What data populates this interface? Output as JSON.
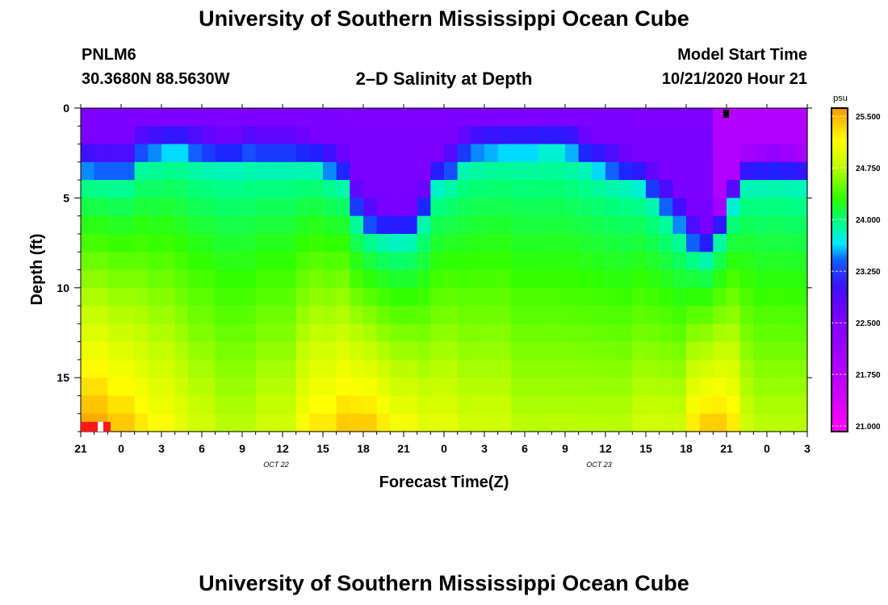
{
  "header": {
    "title": "University of Southern Mississippi Ocean Cube",
    "station_name": "PNLM6",
    "station_coords": "30.3680N 88.5630W",
    "plot_title": "2–D Salinity at Depth",
    "start_label": "Model Start Time",
    "start_value": "10/21/2020 Hour 21"
  },
  "footer": {
    "title": "University of Southern Mississippi Ocean Cube"
  },
  "colors": {
    "scale": [
      "#ff00ff",
      "#d000ff",
      "#9600ff",
      "#2020ff",
      "#00f0ff",
      "#00ff80",
      "#30ff00",
      "#c0ff00",
      "#ffff00",
      "#ff9800"
    ]
  },
  "chart_data": {
    "type": "heatmap",
    "title": "2–D Salinity at Depth",
    "xlabel": "Forecast Time(Z)",
    "ylabel": "Depth (ft)",
    "x_tick_labels": [
      "21",
      "0",
      "3",
      "6",
      "9",
      "12",
      "15",
      "18",
      "21",
      "0",
      "3",
      "6",
      "9",
      "12",
      "15",
      "18",
      "21",
      "0",
      "3"
    ],
    "x_range_hours": [
      0,
      54
    ],
    "date_labels": [
      {
        "text": "OCT 22",
        "hour": 15
      },
      {
        "text": "OCT 23",
        "hour": 39
      }
    ],
    "y_tick_labels": [
      "0",
      "5",
      "10",
      "15"
    ],
    "y_tick_values": [
      0,
      5,
      10,
      15
    ],
    "ylim": [
      0,
      18
    ],
    "n_columns": 54,
    "n_depth_levels": 18,
    "colorbar": {
      "unit": "psu",
      "tick_labels": [
        "25.500",
        "24.750",
        "24.000",
        "23.250",
        "22.500",
        "21.750",
        "21.000"
      ],
      "tick_values": [
        25.5,
        24.75,
        24.0,
        23.25,
        22.5,
        21.75,
        21.0
      ],
      "range": [
        20.92,
        25.62
      ]
    },
    "salinity_psu": {
      "surface_ranges_by_hour": [
        {
          "hours": [
            0,
            5
          ],
          "surface": 22.6
        },
        {
          "hours": [
            5,
            16
          ],
          "surface": 22.6
        },
        {
          "hours": [
            16,
            22
          ],
          "surface": 22.6
        },
        {
          "hours": [
            22,
            35
          ],
          "surface": 22.6
        },
        {
          "hours": [
            35,
            47
          ],
          "surface": 22.6
        },
        {
          "hours": [
            47,
            54
          ],
          "surface": 21.9
        }
      ],
      "halocline_depth_ft": [
        3.2,
        3.3,
        3.3,
        3.3,
        2.4,
        2.2,
        2.0,
        2.0,
        2.3,
        2.5,
        2.6,
        2.6,
        2.4,
        2.5,
        2.5,
        2.5,
        2.6,
        2.7,
        3.2,
        3.6,
        5.5,
        6.4,
        6.7,
        6.8,
        6.7,
        5.6,
        3.8,
        3.4,
        2.5,
        2.2,
        2.1,
        2.0,
        2.0,
        2.0,
        1.9,
        1.9,
        2.1,
        2.6,
        3.0,
        3.3,
        3.6,
        3.9,
        4.5,
        5.3,
        6.2,
        7.3,
        7.7,
        6.6,
        4.9,
        3.6,
        3.5,
        3.4,
        3.5,
        3.6
      ],
      "bottom_psu": [
        25.6,
        25.6,
        25.5,
        25.5,
        25.4,
        25.3,
        25.3,
        25.2,
        25.1,
        25.1,
        25.0,
        25.0,
        25.0,
        25.1,
        25.1,
        25.1,
        25.3,
        25.4,
        25.4,
        25.5,
        25.5,
        25.5,
        25.4,
        25.3,
        25.3,
        25.2,
        25.2,
        25.2,
        25.1,
        25.1,
        25.1,
        25.1,
        25.0,
        25.0,
        25.0,
        25.0,
        25.0,
        25.0,
        25.0,
        25.0,
        25.0,
        25.1,
        25.1,
        25.1,
        25.1,
        25.4,
        25.5,
        25.5,
        25.4,
        25.1,
        25.0,
        25.0,
        25.0,
        25.0
      ]
    }
  }
}
